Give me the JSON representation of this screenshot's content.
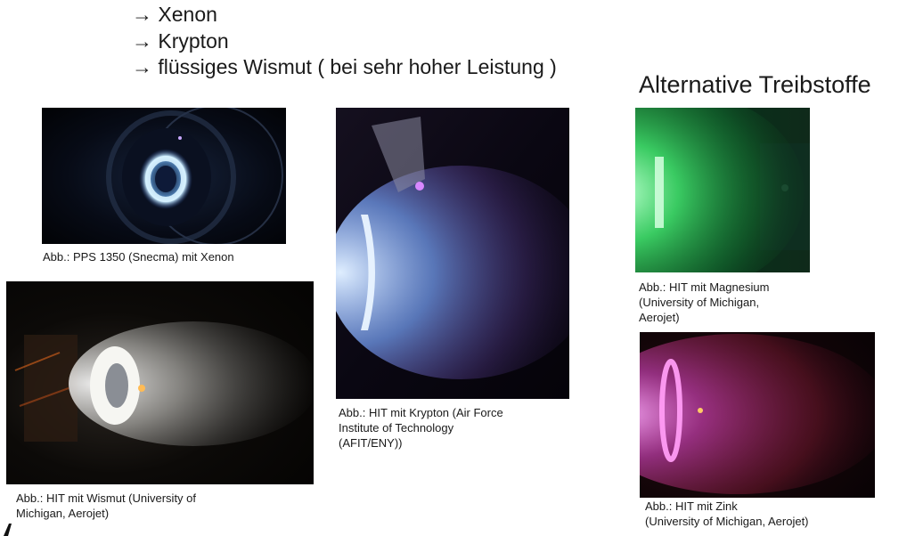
{
  "slide": {
    "bullets": [
      "→ Xenon",
      "→ Krypton",
      "→ flüssiges Wismut ( bei sehr hoher Leistung )"
    ],
    "title": "Alternative Treibstoffe"
  },
  "figures": {
    "xenon": {
      "caption": [
        "Abb.: PPS 1350 (Snecma) mit Xenon"
      ]
    },
    "bismuth": {
      "caption": [
        "Abb.: HIT mit Wismut (University of",
        "Michigan, Aerojet)"
      ]
    },
    "krypton": {
      "caption": [
        "Abb.: HIT mit Krypton (Air Force",
        "Institute of Technology",
        "(AFIT/ENY))"
      ]
    },
    "magnesium": {
      "caption": [
        "Abb.: HIT mit Magnesium",
        "(University of Michigan,",
        "Aerojet)"
      ]
    },
    "zinc": {
      "caption": [
        "Abb.: HIT mit Zink",
        "(University of Michigan, Aerojet)"
      ]
    }
  },
  "colors": {
    "xenon_glow": "#9fd4ff",
    "bismuth_glow": "#f2f2ee",
    "krypton_glow": "#a8c8ff",
    "krypton_tint": "#b070d0",
    "magnesium_glow": "#40e070",
    "zinc_glow": "#ff70e0",
    "zinc_tint": "#c03050"
  }
}
